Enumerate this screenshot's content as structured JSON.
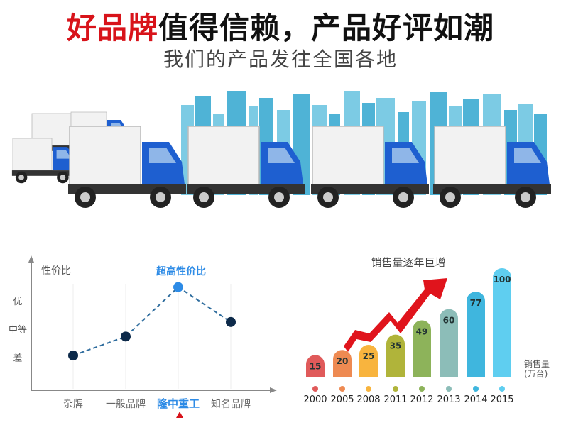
{
  "header": {
    "headline_red": "好品牌",
    "headline_rest": "值得信赖，产品好评如潮",
    "subtitle": "我们的产品发往全国各地"
  },
  "colors": {
    "red": "#d8131a",
    "blue": "#2d8be6",
    "navy": "#0d2a4a",
    "truck_cab": "#1e5fd0",
    "city": "#4fb3d6"
  },
  "chart_data": [
    {
      "type": "line",
      "title": "超高性价比",
      "ylabel": "性价比",
      "categories": [
        "杂牌",
        "一般品牌",
        "隆中重工",
        "知名品牌"
      ],
      "y_levels": [
        "差",
        "中等",
        "优"
      ],
      "values": [
        1.0,
        1.65,
        3.35,
        2.15
      ],
      "highlight": "隆中重工",
      "line_style": "dashed",
      "grid": false
    },
    {
      "type": "bar",
      "title": "销售量逐年巨增",
      "ylabel": "销售量\n(万台)",
      "categories": [
        "2000",
        "2005",
        "2008",
        "2011",
        "2012",
        "2013",
        "2014",
        "2015"
      ],
      "values": [
        15,
        20,
        25,
        35,
        49,
        60,
        77,
        100
      ],
      "bar_colors": [
        "#e05a5a",
        "#ee8a52",
        "#f8b43e",
        "#b0b43a",
        "#8db35a",
        "#8cbdb8",
        "#3fb6de",
        "#5fcef0"
      ],
      "ylim": [
        0,
        100
      ],
      "annotation": "red rising arrow",
      "grid": false
    }
  ]
}
